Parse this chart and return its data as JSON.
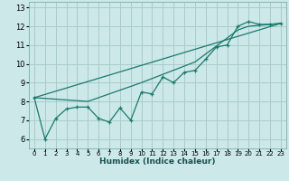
{
  "xlabel": "Humidex (Indice chaleur)",
  "bg_color": "#cce8e8",
  "grid_color": "#aacccc",
  "line_color": "#1a7a6e",
  "xlim": [
    -0.5,
    23.5
  ],
  "ylim": [
    5.5,
    13.3
  ],
  "xticks": [
    0,
    1,
    2,
    3,
    4,
    5,
    6,
    7,
    8,
    9,
    10,
    11,
    12,
    13,
    14,
    15,
    16,
    17,
    18,
    19,
    20,
    21,
    22,
    23
  ],
  "yticks": [
    6,
    7,
    8,
    9,
    10,
    11,
    12,
    13
  ],
  "line1_x": [
    0,
    1,
    2,
    3,
    4,
    5,
    6,
    7,
    8,
    9,
    10,
    11,
    12,
    13,
    14,
    15,
    16,
    17,
    18,
    19,
    20,
    21,
    22,
    23
  ],
  "line1_y": [
    8.2,
    6.0,
    7.1,
    7.6,
    7.7,
    7.7,
    7.1,
    6.9,
    7.65,
    7.0,
    8.5,
    8.4,
    9.3,
    9.0,
    9.55,
    9.65,
    10.25,
    10.9,
    11.0,
    12.0,
    12.25,
    12.1,
    12.1,
    12.15
  ],
  "line3_x": [
    0,
    23
  ],
  "line3_y": [
    8.2,
    12.15
  ],
  "line3b_x": [
    0,
    5,
    10,
    15,
    19,
    20,
    21,
    22,
    23
  ],
  "line3b_y": [
    8.2,
    8.0,
    9.0,
    10.1,
    11.8,
    12.0,
    12.05,
    12.1,
    12.15
  ]
}
